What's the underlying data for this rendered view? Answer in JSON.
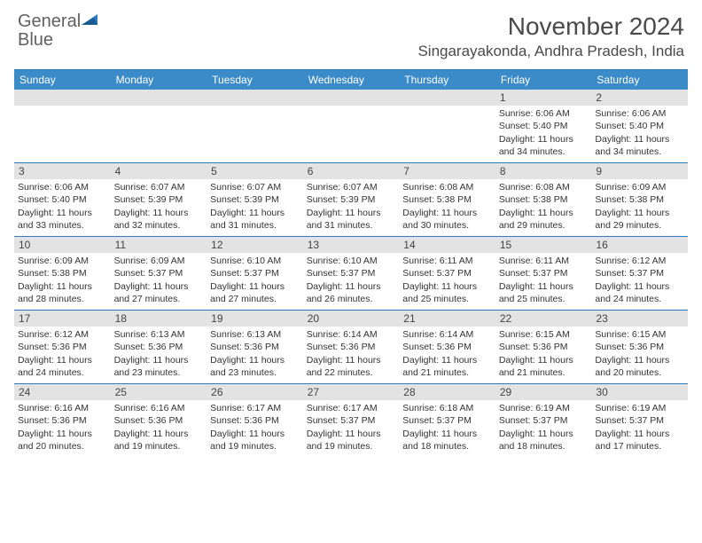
{
  "logo": {
    "text1": "General",
    "text2": "Blue"
  },
  "header": {
    "month_year": "November 2024",
    "location": "Singarayakonda, Andhra Pradesh, India"
  },
  "colors": {
    "accent": "#3b8bc9",
    "border": "#2b7bbf",
    "date_bg": "#e3e3e3",
    "text": "#333333",
    "header_text": "#4a4a4a"
  },
  "day_names": [
    "Sunday",
    "Monday",
    "Tuesday",
    "Wednesday",
    "Thursday",
    "Friday",
    "Saturday"
  ],
  "weeks": [
    [
      {
        "empty": true
      },
      {
        "empty": true
      },
      {
        "empty": true
      },
      {
        "empty": true
      },
      {
        "empty": true
      },
      {
        "date": "1",
        "sunrise": "Sunrise: 6:06 AM",
        "sunset": "Sunset: 5:40 PM",
        "daylight1": "Daylight: 11 hours",
        "daylight2": "and 34 minutes."
      },
      {
        "date": "2",
        "sunrise": "Sunrise: 6:06 AM",
        "sunset": "Sunset: 5:40 PM",
        "daylight1": "Daylight: 11 hours",
        "daylight2": "and 34 minutes."
      }
    ],
    [
      {
        "date": "3",
        "sunrise": "Sunrise: 6:06 AM",
        "sunset": "Sunset: 5:40 PM",
        "daylight1": "Daylight: 11 hours",
        "daylight2": "and 33 minutes."
      },
      {
        "date": "4",
        "sunrise": "Sunrise: 6:07 AM",
        "sunset": "Sunset: 5:39 PM",
        "daylight1": "Daylight: 11 hours",
        "daylight2": "and 32 minutes."
      },
      {
        "date": "5",
        "sunrise": "Sunrise: 6:07 AM",
        "sunset": "Sunset: 5:39 PM",
        "daylight1": "Daylight: 11 hours",
        "daylight2": "and 31 minutes."
      },
      {
        "date": "6",
        "sunrise": "Sunrise: 6:07 AM",
        "sunset": "Sunset: 5:39 PM",
        "daylight1": "Daylight: 11 hours",
        "daylight2": "and 31 minutes."
      },
      {
        "date": "7",
        "sunrise": "Sunrise: 6:08 AM",
        "sunset": "Sunset: 5:38 PM",
        "daylight1": "Daylight: 11 hours",
        "daylight2": "and 30 minutes."
      },
      {
        "date": "8",
        "sunrise": "Sunrise: 6:08 AM",
        "sunset": "Sunset: 5:38 PM",
        "daylight1": "Daylight: 11 hours",
        "daylight2": "and 29 minutes."
      },
      {
        "date": "9",
        "sunrise": "Sunrise: 6:09 AM",
        "sunset": "Sunset: 5:38 PM",
        "daylight1": "Daylight: 11 hours",
        "daylight2": "and 29 minutes."
      }
    ],
    [
      {
        "date": "10",
        "sunrise": "Sunrise: 6:09 AM",
        "sunset": "Sunset: 5:38 PM",
        "daylight1": "Daylight: 11 hours",
        "daylight2": "and 28 minutes."
      },
      {
        "date": "11",
        "sunrise": "Sunrise: 6:09 AM",
        "sunset": "Sunset: 5:37 PM",
        "daylight1": "Daylight: 11 hours",
        "daylight2": "and 27 minutes."
      },
      {
        "date": "12",
        "sunrise": "Sunrise: 6:10 AM",
        "sunset": "Sunset: 5:37 PM",
        "daylight1": "Daylight: 11 hours",
        "daylight2": "and 27 minutes."
      },
      {
        "date": "13",
        "sunrise": "Sunrise: 6:10 AM",
        "sunset": "Sunset: 5:37 PM",
        "daylight1": "Daylight: 11 hours",
        "daylight2": "and 26 minutes."
      },
      {
        "date": "14",
        "sunrise": "Sunrise: 6:11 AM",
        "sunset": "Sunset: 5:37 PM",
        "daylight1": "Daylight: 11 hours",
        "daylight2": "and 25 minutes."
      },
      {
        "date": "15",
        "sunrise": "Sunrise: 6:11 AM",
        "sunset": "Sunset: 5:37 PM",
        "daylight1": "Daylight: 11 hours",
        "daylight2": "and 25 minutes."
      },
      {
        "date": "16",
        "sunrise": "Sunrise: 6:12 AM",
        "sunset": "Sunset: 5:37 PM",
        "daylight1": "Daylight: 11 hours",
        "daylight2": "and 24 minutes."
      }
    ],
    [
      {
        "date": "17",
        "sunrise": "Sunrise: 6:12 AM",
        "sunset": "Sunset: 5:36 PM",
        "daylight1": "Daylight: 11 hours",
        "daylight2": "and 24 minutes."
      },
      {
        "date": "18",
        "sunrise": "Sunrise: 6:13 AM",
        "sunset": "Sunset: 5:36 PM",
        "daylight1": "Daylight: 11 hours",
        "daylight2": "and 23 minutes."
      },
      {
        "date": "19",
        "sunrise": "Sunrise: 6:13 AM",
        "sunset": "Sunset: 5:36 PM",
        "daylight1": "Daylight: 11 hours",
        "daylight2": "and 23 minutes."
      },
      {
        "date": "20",
        "sunrise": "Sunrise: 6:14 AM",
        "sunset": "Sunset: 5:36 PM",
        "daylight1": "Daylight: 11 hours",
        "daylight2": "and 22 minutes."
      },
      {
        "date": "21",
        "sunrise": "Sunrise: 6:14 AM",
        "sunset": "Sunset: 5:36 PM",
        "daylight1": "Daylight: 11 hours",
        "daylight2": "and 21 minutes."
      },
      {
        "date": "22",
        "sunrise": "Sunrise: 6:15 AM",
        "sunset": "Sunset: 5:36 PM",
        "daylight1": "Daylight: 11 hours",
        "daylight2": "and 21 minutes."
      },
      {
        "date": "23",
        "sunrise": "Sunrise: 6:15 AM",
        "sunset": "Sunset: 5:36 PM",
        "daylight1": "Daylight: 11 hours",
        "daylight2": "and 20 minutes."
      }
    ],
    [
      {
        "date": "24",
        "sunrise": "Sunrise: 6:16 AM",
        "sunset": "Sunset: 5:36 PM",
        "daylight1": "Daylight: 11 hours",
        "daylight2": "and 20 minutes."
      },
      {
        "date": "25",
        "sunrise": "Sunrise: 6:16 AM",
        "sunset": "Sunset: 5:36 PM",
        "daylight1": "Daylight: 11 hours",
        "daylight2": "and 19 minutes."
      },
      {
        "date": "26",
        "sunrise": "Sunrise: 6:17 AM",
        "sunset": "Sunset: 5:36 PM",
        "daylight1": "Daylight: 11 hours",
        "daylight2": "and 19 minutes."
      },
      {
        "date": "27",
        "sunrise": "Sunrise: 6:17 AM",
        "sunset": "Sunset: 5:37 PM",
        "daylight1": "Daylight: 11 hours",
        "daylight2": "and 19 minutes."
      },
      {
        "date": "28",
        "sunrise": "Sunrise: 6:18 AM",
        "sunset": "Sunset: 5:37 PM",
        "daylight1": "Daylight: 11 hours",
        "daylight2": "and 18 minutes."
      },
      {
        "date": "29",
        "sunrise": "Sunrise: 6:19 AM",
        "sunset": "Sunset: 5:37 PM",
        "daylight1": "Daylight: 11 hours",
        "daylight2": "and 18 minutes."
      },
      {
        "date": "30",
        "sunrise": "Sunrise: 6:19 AM",
        "sunset": "Sunset: 5:37 PM",
        "daylight1": "Daylight: 11 hours",
        "daylight2": "and 17 minutes."
      }
    ]
  ]
}
